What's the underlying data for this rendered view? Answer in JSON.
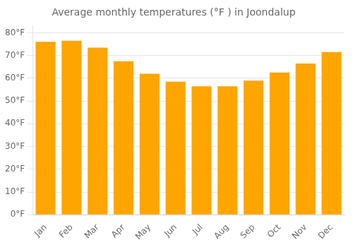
{
  "chart_data": {
    "type": "bar",
    "title": "Average monthly temperatures (°F ) in Joondalup",
    "categories": [
      "Jan",
      "Feb",
      "Mar",
      "Apr",
      "May",
      "Jun",
      "Jul",
      "Aug",
      "Sep",
      "Oct",
      "Nov",
      "Dec"
    ],
    "values": [
      76.0,
      76.5,
      73.5,
      67.5,
      62.0,
      58.5,
      56.5,
      56.5,
      59.0,
      62.5,
      66.5,
      71.5
    ],
    "color": "#FFA500",
    "ylim": [
      0,
      83
    ],
    "yticks": [
      {
        "value": 0,
        "label": "0°F"
      },
      {
        "value": 10,
        "label": "10°F"
      },
      {
        "value": 20,
        "label": "20°F"
      },
      {
        "value": 30,
        "label": "30°F"
      },
      {
        "value": 40,
        "label": "40°F"
      },
      {
        "value": 50,
        "label": "50°F"
      },
      {
        "value": 60,
        "label": "60°F"
      },
      {
        "value": 70,
        "label": "70°F"
      },
      {
        "value": 80,
        "label": "80°F"
      }
    ],
    "grid": true
  }
}
